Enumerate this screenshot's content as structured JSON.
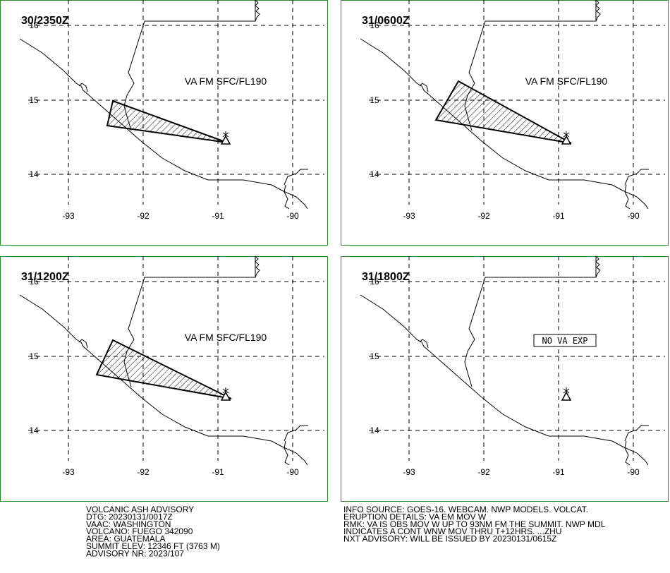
{
  "panels": [
    {
      "time": "30/2350Z",
      "note": "VA FM SFC/FL190"
    },
    {
      "time": "31/0600Z",
      "note": "VA FM SFC/FL190"
    },
    {
      "time": "31/1200Z",
      "note": "VA FM SFC/FL190"
    },
    {
      "time": "31/1800Z",
      "note": "NO VA EXP"
    }
  ],
  "lat_labels": [
    "16",
    "15",
    "14"
  ],
  "lon_labels": [
    "-93",
    "-92",
    "-91",
    "-90"
  ],
  "advisory_left": [
    "VOLCANIC ASH ADVISORY",
    "DTG: 20230131/0017Z",
    "VAAC: WASHINGTON",
    "VOLCANO: FUEGO 342090",
    "AREA: GUATEMALA",
    "SUMMIT ELEV: 12346 FT (3763 M)",
    "ADVISORY NR: 2023/107"
  ],
  "advisory_right": [
    "INFO SOURCE: GOES-16. WEBCAM. NWP MODELS. VOLCAT.",
    "ERUPTION DETAILS: VA EM MOV W",
    "RMK: VA IS OBS MOV W UP TO 93NM FM THE SUMMIT. NWP MDL",
    "INDICATES A CONT WNW MOV THRU T+12HRS. ...ZHU",
    "NXT ADVISORY: WILL BE ISSUED BY 20230131/0615Z"
  ]
}
